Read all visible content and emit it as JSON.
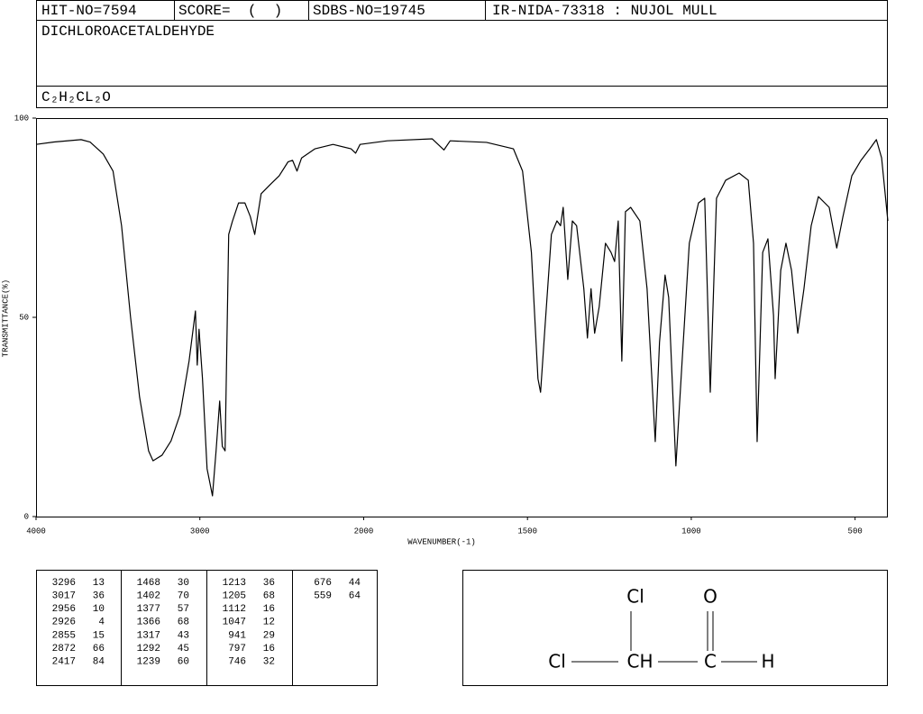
{
  "header": {
    "hit_no": "HIT-NO=7594",
    "score": "SCORE=  (  )",
    "sdbs_no": "SDBS-NO=19745",
    "ir_code": "IR-NIDA-73318 : NUJOL MULL",
    "name": "DICHLOROACETALDEHYDE",
    "formula": "C₂H₂CL₂O"
  },
  "chart_data": {
    "type": "line",
    "xlabel": "WAVENUMBER(-1)",
    "ylabel": "TRANSMITTANCE(%)",
    "color": "#000000",
    "x": [
      4000,
      3890,
      3725,
      3670,
      3590,
      3530,
      3478,
      3423,
      3368,
      3313,
      3286,
      3231,
      3176,
      3121,
      3066,
      3027,
      3016,
      3005,
      2984,
      2956,
      2923,
      2901,
      2879,
      2863,
      2846,
      2824,
      2802,
      2764,
      2725,
      2692,
      2665,
      2626,
      2571,
      2516,
      2462,
      2434,
      2407,
      2379,
      2297,
      2187,
      2077,
      2049,
      2022,
      1928,
      1791,
      1755,
      1736,
      1625,
      1543,
      1515,
      1488,
      1468,
      1460,
      1446,
      1427,
      1410,
      1399,
      1391,
      1377,
      1363,
      1350,
      1328,
      1317,
      1306,
      1295,
      1281,
      1262,
      1245,
      1234,
      1223,
      1212,
      1201,
      1185,
      1157,
      1135,
      1110,
      1097,
      1080,
      1069,
      1047,
      1028,
      1006,
      978,
      959,
      942,
      923,
      895,
      854,
      826,
      810,
      799,
      782,
      766,
      749,
      744,
      727,
      711,
      694,
      675,
      656,
      634,
      612,
      579,
      556,
      537,
      510,
      482,
      455,
      435,
      419,
      400
    ],
    "values": [
      93.4,
      94,
      94.6,
      94,
      91,
      86.7,
      73,
      50,
      30,
      16.5,
      14,
      15.4,
      19,
      25.6,
      39,
      51.6,
      38,
      47,
      34.6,
      12,
      5.2,
      16.5,
      29,
      17.6,
      16.5,
      70.8,
      74,
      78.7,
      78.7,
      75.3,
      70.8,
      81,
      83.3,
      85.5,
      89,
      89.4,
      86.7,
      90,
      92.3,
      93.4,
      92.3,
      91.2,
      93.4,
      94.3,
      94.8,
      92,
      94.3,
      93.9,
      92.3,
      86.7,
      66.3,
      34.6,
      31.2,
      48.2,
      70.8,
      74.2,
      73,
      77.6,
      59.5,
      74.2,
      73,
      57.2,
      44.8,
      57.2,
      46,
      52.7,
      68.6,
      66.3,
      64,
      74.2,
      39,
      76.5,
      77.6,
      74.2,
      57.2,
      18.8,
      43.7,
      60.6,
      55,
      12.7,
      39,
      68.6,
      78.7,
      79.9,
      31.2,
      79.9,
      84.4,
      86.2,
      84.4,
      68.6,
      18.8,
      66.3,
      69.7,
      50.5,
      34.6,
      61.8,
      68.6,
      61.8,
      46,
      57.2,
      73,
      80.3,
      77.6,
      67.4,
      75.3,
      85.5,
      89.4,
      92.3,
      94.6,
      90,
      74.2
    ],
    "xlim": [
      4000,
      400
    ],
    "ylim": [
      0,
      100
    ],
    "xticks": [
      4000,
      3000,
      2000,
      1500,
      1000,
      500
    ],
    "yticks": [
      0,
      50,
      100
    ]
  },
  "peak_table": {
    "columns": [
      [
        [
          3296,
          13
        ],
        [
          3017,
          36
        ],
        [
          2956,
          10
        ],
        [
          2926,
          4
        ],
        [
          2855,
          15
        ],
        [
          2872,
          66
        ],
        [
          2417,
          84
        ]
      ],
      [
        [
          1468,
          30
        ],
        [
          1402,
          70
        ],
        [
          1377,
          57
        ],
        [
          1366,
          68
        ],
        [
          1317,
          43
        ],
        [
          1292,
          45
        ],
        [
          1239,
          60
        ]
      ],
      [
        [
          1213,
          36
        ],
        [
          1205,
          68
        ],
        [
          1112,
          16
        ],
        [
          1047,
          12
        ],
        [
          941,
          29
        ],
        [
          797,
          16
        ],
        [
          746,
          32
        ]
      ],
      [
        [
          676,
          44
        ],
        [
          559,
          64
        ]
      ]
    ]
  },
  "structure": {
    "atoms": [
      "Cl",
      "O",
      "Cl",
      "CH",
      "C",
      "H"
    ]
  }
}
